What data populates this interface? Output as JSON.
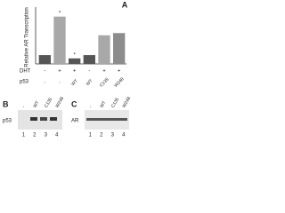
{
  "chart_data": {
    "type": "bar",
    "panel": "A",
    "ylabel": "Relative AR Transcription",
    "values": [
      0.8,
      4.3,
      0.5,
      0.8,
      2.6,
      2.8
    ],
    "colors": [
      "#555555",
      "#a8a8a8",
      "#555555",
      "#555555",
      "#a8a8a8",
      "#8c8c8c"
    ],
    "markers": [
      null,
      "*",
      "*",
      null,
      null,
      null
    ],
    "ylim": [
      0,
      5
    ],
    "row_labels": [
      "DHT",
      "p53"
    ],
    "dht": [
      "-",
      "+",
      "+",
      "-",
      "+",
      "+"
    ],
    "p53": [
      "-",
      "-",
      "WT",
      "WT",
      "C135",
      "W248"
    ]
  },
  "blots": [
    {
      "panel": "B",
      "protein": "p53",
      "lanes": [
        "-",
        "WT",
        "C135",
        "W248"
      ],
      "lane_numbers": [
        1,
        2,
        3,
        4
      ]
    },
    {
      "panel": "C",
      "protein": "AR",
      "lanes": [
        "-",
        "WT",
        "C135",
        "W248"
      ],
      "lane_numbers": [
        1,
        2,
        3,
        4
      ]
    }
  ]
}
